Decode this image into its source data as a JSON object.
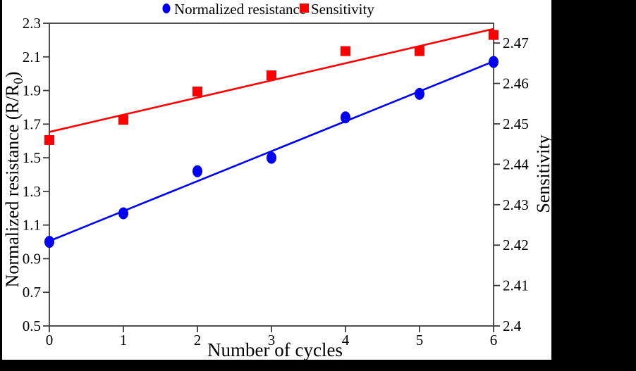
{
  "figure": {
    "background_color": "#000000",
    "panel_color": "#ffffff",
    "axis_color": "#3d3d3d",
    "text_color": "#000000"
  },
  "legend": {
    "position": "top",
    "items": [
      {
        "label": "Normalized resistance",
        "marker": "circle",
        "color": "#0000F0"
      },
      {
        "label": "Sensitivity",
        "marker": "square",
        "color": "#FB0000"
      }
    ]
  },
  "chart_data": {
    "type": "scatter",
    "title": "",
    "xlabel": "Number of cycles",
    "ylabel_left": "Normalized resistance (R/R0)",
    "ylabel_left_parts": {
      "pre": "Normalized resistance (R/R",
      "sub": "0",
      "post": ")"
    },
    "ylabel_right": "Sensitivity",
    "grid": false,
    "xlim": [
      0,
      6
    ],
    "left_ylim": [
      0.5,
      2.3
    ],
    "right_ylim": [
      2.4,
      2.4749
    ],
    "x_ticks": [
      {
        "v": 0,
        "t": "0"
      },
      {
        "v": 1,
        "t": "1"
      },
      {
        "v": 2,
        "t": "2"
      },
      {
        "v": 3,
        "t": "3"
      },
      {
        "v": 4,
        "t": "4"
      },
      {
        "v": 5,
        "t": "5"
      },
      {
        "v": 6,
        "t": "6"
      }
    ],
    "left_ticks": [
      {
        "v": 0.5,
        "t": "0.5"
      },
      {
        "v": 0.7,
        "t": "0.7"
      },
      {
        "v": 0.9,
        "t": "0.9"
      },
      {
        "v": 1.1,
        "t": "1.1"
      },
      {
        "v": 1.3,
        "t": "1.3"
      },
      {
        "v": 1.5,
        "t": "1.5"
      },
      {
        "v": 1.7,
        "t": "1.7"
      },
      {
        "v": 1.9,
        "t": "1.9"
      },
      {
        "v": 2.1,
        "t": "2.1"
      },
      {
        "v": 2.3,
        "t": "2.3"
      }
    ],
    "right_ticks": [
      {
        "v": 2.4,
        "t": "2.4"
      },
      {
        "v": 2.41,
        "t": "2.41"
      },
      {
        "v": 2.42,
        "t": "2.42"
      },
      {
        "v": 2.43,
        "t": "2.43"
      },
      {
        "v": 2.44,
        "t": "2.44"
      },
      {
        "v": 2.45,
        "t": "2.45"
      },
      {
        "v": 2.46,
        "t": "2.46"
      },
      {
        "v": 2.47,
        "t": "2.47"
      }
    ],
    "x": [
      0,
      1,
      2,
      3,
      4,
      5,
      6
    ],
    "series": [
      {
        "name": "Normalized resistance",
        "axis": "left",
        "marker": "circle",
        "color": "#0000F0",
        "values": [
          1.0,
          1.17,
          1.42,
          1.5,
          1.74,
          1.88,
          2.07
        ],
        "trendline": {
          "start": 1.005,
          "end": 2.073
        }
      },
      {
        "name": "Sensitivity",
        "axis": "right",
        "marker": "square",
        "color": "#FB0000",
        "values": [
          2.446,
          2.451,
          2.458,
          2.462,
          2.468,
          2.468,
          2.472
        ],
        "trendline": {
          "start": 2.448,
          "end": 2.4735
        }
      }
    ]
  }
}
